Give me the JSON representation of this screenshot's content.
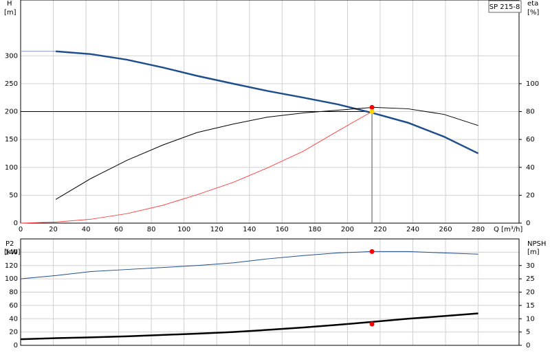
{
  "chart_data": [
    {
      "type": "line",
      "title": "SP 215-8",
      "y_label": "H",
      "y_unit": "[m]",
      "y2_label": "eta",
      "y2_unit": "[%]",
      "x_label": "Q [m³/h]",
      "xlim": [
        0,
        305
      ],
      "xticks": [
        0,
        20,
        40,
        60,
        80,
        100,
        120,
        140,
        160,
        180,
        200,
        220,
        240,
        260,
        280
      ],
      "ylim": [
        0,
        400
      ],
      "yticks": [
        0,
        50,
        100,
        150,
        200,
        250,
        300
      ],
      "y2lim": [
        0,
        160
      ],
      "y2ticks": [
        0,
        20,
        40,
        60,
        80,
        100
      ],
      "grid": true,
      "series": [
        {
          "color": "#8899bb",
          "width": 1,
          "x": [
            0,
            21.5
          ],
          "values": [
            308,
            308
          ]
        },
        {
          "color": "#1f4e8c",
          "width": 2.5,
          "x": [
            21.5,
            43,
            65,
            87,
            108,
            130,
            151,
            173,
            194,
            216,
            237,
            259,
            280
          ],
          "values": [
            308,
            303,
            293,
            279,
            264,
            250,
            237,
            225,
            213,
            197,
            180,
            155,
            125
          ]
        },
        {
          "color": "#000000",
          "width": 1,
          "axis": "y2",
          "x": [
            21.5,
            43,
            65,
            87,
            108,
            130,
            151,
            173,
            194,
            216,
            237,
            259,
            280
          ],
          "values": [
            17,
            32,
            45,
            56,
            65,
            71,
            76,
            79,
            81,
            83,
            82,
            78,
            70
          ]
        },
        {
          "color": "#ff4444",
          "width": 1,
          "x": [
            0,
            22,
            43,
            65,
            87,
            108,
            130,
            151,
            173,
            194,
            215
          ],
          "values": [
            0,
            2,
            7,
            17,
            32,
            51,
            73,
            99,
            129,
            165,
            200
          ]
        }
      ],
      "duty_point": {
        "x": 215,
        "y": 200
      },
      "markers": [
        {
          "x": 215,
          "y": 83,
          "axis": "y2",
          "color": "#ff0000"
        },
        {
          "x": 215,
          "y": 200,
          "color": "#ffd700"
        }
      ]
    },
    {
      "type": "line",
      "y_label": "P2",
      "y_unit": "[kW]",
      "y2_label": "NPSH",
      "y2_unit": "[m]",
      "ylim": [
        0,
        160
      ],
      "yticks": [
        0,
        20,
        40,
        60,
        80,
        100,
        120,
        140
      ],
      "y2lim": [
        0,
        40
      ],
      "y2ticks": [
        0,
        5,
        10,
        15,
        20,
        25,
        30
      ],
      "grid": true,
      "series": [
        {
          "color": "#1f4e8c",
          "width": 1,
          "x": [
            0,
            22,
            43,
            65,
            87,
            108,
            130,
            151,
            173,
            194,
            215,
            237,
            259,
            280
          ],
          "values": [
            100,
            105,
            111,
            114,
            117,
            120,
            124,
            130,
            135,
            139,
            141,
            141,
            139,
            137
          ]
        },
        {
          "color": "#000000",
          "width": 2.5,
          "axis": "y2",
          "x": [
            0,
            22,
            43,
            65,
            87,
            108,
            130,
            151,
            173,
            194,
            215,
            237,
            259,
            280
          ],
          "values": [
            2.3,
            2.7,
            3,
            3.4,
            3.9,
            4.4,
            5,
            5.8,
            6.7,
            7.7,
            8.8,
            10,
            11,
            12
          ]
        }
      ],
      "markers": [
        {
          "x": 215,
          "y": 141,
          "color": "#ff0000"
        },
        {
          "x": 215,
          "y": 8,
          "axis": "y2",
          "color": "#ff0000"
        }
      ]
    }
  ]
}
